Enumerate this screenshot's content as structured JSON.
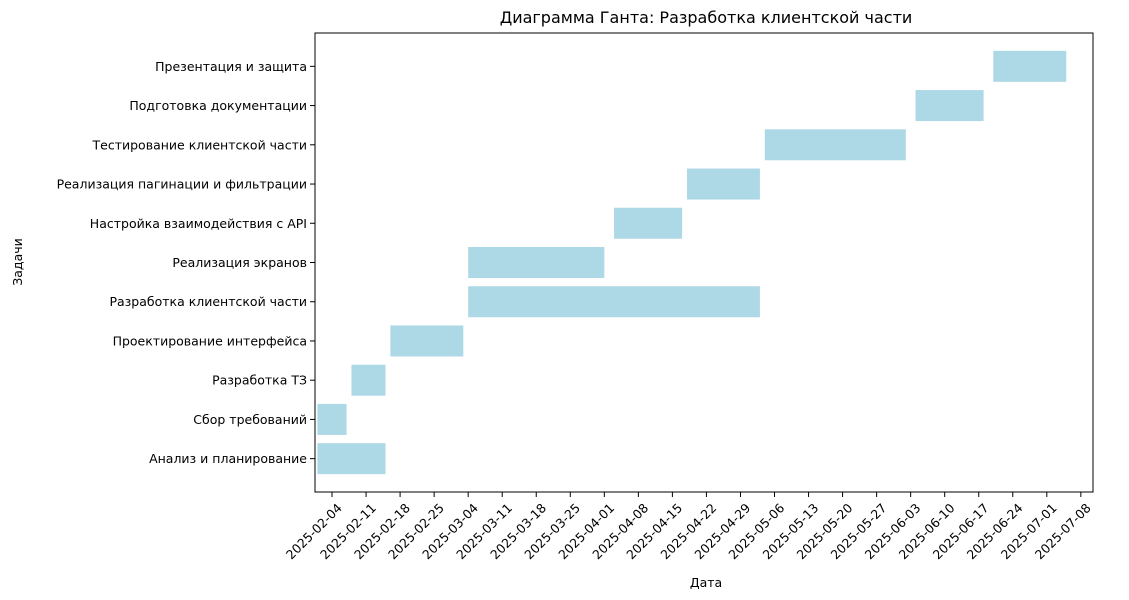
{
  "chart_data": {
    "type": "gantt",
    "title": "Диаграмма Ганта: Разработка клиентской части",
    "xlabel": "Дата",
    "ylabel": "Задачи",
    "bar_color": "#add8e6",
    "x_ticks": [
      "2025-02-04",
      "2025-02-11",
      "2025-02-18",
      "2025-02-25",
      "2025-03-04",
      "2025-03-11",
      "2025-03-18",
      "2025-03-25",
      "2025-04-01",
      "2025-04-08",
      "2025-04-15",
      "2025-04-22",
      "2025-04-29",
      "2025-05-06",
      "2025-05-13",
      "2025-05-20",
      "2025-05-27",
      "2025-06-03",
      "2025-06-10",
      "2025-06-17",
      "2025-06-24",
      "2025-07-01",
      "2025-07-08"
    ],
    "xlim": [
      "2025-02-01",
      "2025-07-10"
    ],
    "tasks": [
      {
        "name": "Анализ и планирование",
        "start": "2025-02-01",
        "end": "2025-02-15"
      },
      {
        "name": "Сбор требований",
        "start": "2025-02-01",
        "end": "2025-02-07"
      },
      {
        "name": "Разработка ТЗ",
        "start": "2025-02-08",
        "end": "2025-02-15"
      },
      {
        "name": "Проектирование интерфейса",
        "start": "2025-02-16",
        "end": "2025-03-03"
      },
      {
        "name": "Разработка клиентской части",
        "start": "2025-03-04",
        "end": "2025-05-03"
      },
      {
        "name": "Реализация экранов",
        "start": "2025-03-04",
        "end": "2025-04-01"
      },
      {
        "name": "Настройка взаимодействия с API",
        "start": "2025-04-03",
        "end": "2025-04-17"
      },
      {
        "name": "Реализация пагинации и фильтрации",
        "start": "2025-04-18",
        "end": "2025-05-03"
      },
      {
        "name": "Тестирование клиентской части",
        "start": "2025-05-04",
        "end": "2025-06-02"
      },
      {
        "name": "Подготовка документации",
        "start": "2025-06-04",
        "end": "2025-06-18"
      },
      {
        "name": "Презентация и защита",
        "start": "2025-06-20",
        "end": "2025-07-05"
      }
    ]
  }
}
